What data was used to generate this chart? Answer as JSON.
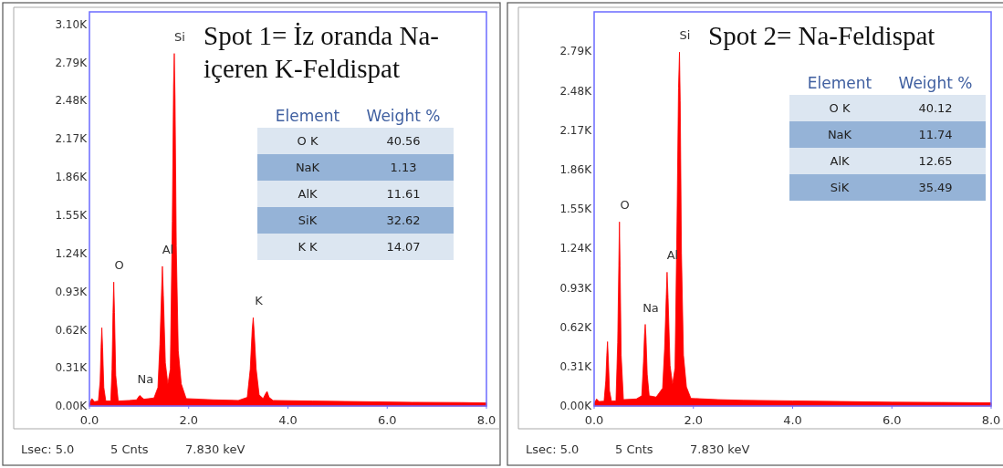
{
  "chart_data": [
    {
      "type": "area",
      "title": "Spot 1= İz oranda Na-içeren K-Feldispat",
      "xlim": [
        0,
        8.0
      ],
      "xticks": [
        {
          "value": 0,
          "label": "0.0"
        },
        {
          "value": 2,
          "label": "2.0"
        },
        {
          "value": 4,
          "label": "4.0"
        },
        {
          "value": 6,
          "label": "6.0"
        },
        {
          "value": 8,
          "label": "8.0"
        }
      ],
      "ylim": [
        0,
        3200
      ],
      "yticks": [
        {
          "value": 0,
          "label": "0.00K"
        },
        {
          "value": 310,
          "label": "0.31K"
        },
        {
          "value": 620,
          "label": "0.62K"
        },
        {
          "value": 930,
          "label": "0.93K"
        },
        {
          "value": 1240,
          "label": "1.24K"
        },
        {
          "value": 1550,
          "label": "1.55K"
        },
        {
          "value": 1860,
          "label": "1.86K"
        },
        {
          "value": 2170,
          "label": "2.17K"
        },
        {
          "value": 2480,
          "label": "2.48K"
        },
        {
          "value": 2790,
          "label": "2.79K"
        },
        {
          "value": 3100,
          "label": "3.10K"
        }
      ],
      "series": [
        {
          "color": "#ff0000",
          "x": [
            0.0,
            0.05,
            0.1,
            0.18,
            0.215,
            0.235,
            0.25,
            0.265,
            0.29,
            0.33,
            0.43,
            0.455,
            0.475,
            0.49,
            0.505,
            0.53,
            0.58,
            0.8,
            0.95,
            1.0,
            1.02,
            1.05,
            1.1,
            1.3,
            1.38,
            1.42,
            1.455,
            1.47,
            1.49,
            1.53,
            1.58,
            1.63,
            1.67,
            1.695,
            1.71,
            1.725,
            1.75,
            1.79,
            1.85,
            1.95,
            2.5,
            3.0,
            3.18,
            3.24,
            3.28,
            3.3,
            3.32,
            3.36,
            3.42,
            3.5,
            3.55,
            3.58,
            3.62,
            3.7,
            4.5,
            5.5,
            6.5,
            7.5,
            8.0
          ],
          "values": [
            20,
            60,
            35,
            40,
            200,
            480,
            635,
            480,
            150,
            40,
            40,
            300,
            760,
            1006,
            760,
            250,
            40,
            45,
            50,
            80,
            85,
            70,
            55,
            65,
            150,
            500,
            950,
            1134,
            900,
            350,
            180,
            300,
            1500,
            2600,
            2862,
            2500,
            1300,
            450,
            180,
            60,
            50,
            45,
            70,
            300,
            620,
            717,
            600,
            300,
            90,
            60,
            100,
            118,
            70,
            45,
            40,
            35,
            30,
            28,
            25
          ]
        }
      ],
      "annotations": [
        {
          "text": "Si",
          "x": 1.71,
          "y": 2862
        },
        {
          "text": "O",
          "x": 0.49,
          "y": 1006
        },
        {
          "text": "Al",
          "x": 1.47,
          "y": 1134
        },
        {
          "text": "Na",
          "x": 1.02,
          "y": 85
        },
        {
          "text": "K",
          "x": 3.3,
          "y": 717
        },
        "Lsec: 5.0",
        "5 Cnts",
        "7.830 keV",
        "Element",
        "Weight %",
        "O K",
        "40.56",
        "NaK",
        "1.13",
        "AlK",
        "11.61",
        "SiK",
        "32.62",
        "K K",
        "14.07"
      ]
    },
    {
      "type": "area",
      "title": "Spot 2= Na-Feldispat",
      "xlim": [
        0,
        8.0
      ],
      "xticks": [
        {
          "value": 0,
          "label": "0.0"
        },
        {
          "value": 2,
          "label": "2.0"
        },
        {
          "value": 4,
          "label": "4.0"
        },
        {
          "value": 6,
          "label": "6.0"
        },
        {
          "value": 8,
          "label": "8.0"
        }
      ],
      "ylim": [
        0,
        3100
      ],
      "yticks": [
        {
          "value": 0,
          "label": "0.00K"
        },
        {
          "value": 310,
          "label": "0.31K"
        },
        {
          "value": 620,
          "label": "0.62K"
        },
        {
          "value": 930,
          "label": "0.93K"
        },
        {
          "value": 1240,
          "label": "1.24K"
        },
        {
          "value": 1550,
          "label": "1.55K"
        },
        {
          "value": 1860,
          "label": "1.86K"
        },
        {
          "value": 2170,
          "label": "2.17K"
        },
        {
          "value": 2480,
          "label": "2.48K"
        },
        {
          "value": 2790,
          "label": "2.79K"
        }
      ],
      "series": [
        {
          "color": "#ff0000",
          "x": [
            0,
            0.05,
            0.1,
            0.2,
            0.235,
            0.255,
            0.27,
            0.285,
            0.31,
            0.35,
            0.44,
            0.475,
            0.497,
            0.51,
            0.523,
            0.545,
            0.59,
            0.85,
            0.96,
            0.995,
            1.015,
            1.03,
            1.045,
            1.07,
            1.11,
            1.25,
            1.38,
            1.42,
            1.455,
            1.47,
            1.49,
            1.53,
            1.58,
            1.63,
            1.67,
            1.7,
            1.72,
            1.735,
            1.76,
            1.8,
            1.86,
            1.95,
            2.5,
            3.0,
            4.0,
            5.0,
            6.0,
            7.0,
            8.0
          ],
          "values": [
            20,
            55,
            35,
            38,
            200,
            400,
            506,
            380,
            120,
            38,
            40,
            500,
            1100,
            1448,
            1100,
            400,
            50,
            55,
            80,
            350,
            560,
            642,
            540,
            250,
            80,
            70,
            140,
            450,
            880,
            1052,
            850,
            320,
            170,
            300,
            1450,
            2500,
            2783,
            2400,
            1200,
            400,
            150,
            60,
            50,
            45,
            40,
            35,
            30,
            28,
            25
          ]
        }
      ],
      "annotations": [
        {
          "text": "Si",
          "x": 1.72,
          "y": 2783
        },
        {
          "text": "O",
          "x": 0.51,
          "y": 1448
        },
        {
          "text": "Na",
          "x": 1.03,
          "y": 642
        },
        {
          "text": "Al",
          "x": 1.47,
          "y": 1052
        },
        "Lsec: 5.0",
        "5 Cnts",
        "7.830 keV",
        "Element",
        "Weight %",
        "O K",
        "40.12",
        "NaK",
        "11.74",
        "AlK",
        "12.65",
        "SiK",
        "35.49"
      ]
    }
  ]
}
